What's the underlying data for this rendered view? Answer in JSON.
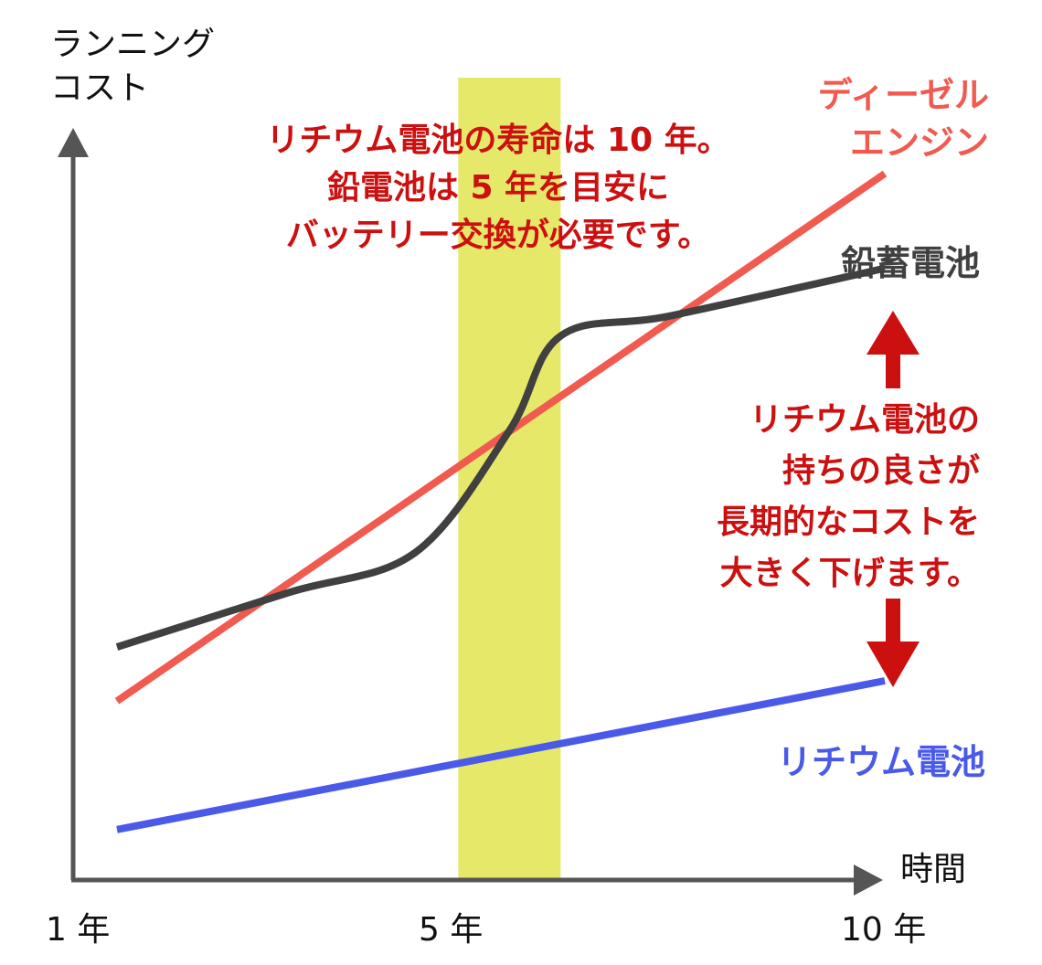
{
  "chart_data": {
    "type": "line",
    "title": "",
    "ylabel": [
      "ランニング",
      "コスト"
    ],
    "xlabel": "時間",
    "x_ticks": [
      "1 年",
      "5 年",
      "10 年"
    ],
    "highlight_band": {
      "from_year": 5,
      "to_year": 6.2,
      "color": "#e6e86a"
    },
    "series": [
      {
        "name": [
          "ディーゼル",
          "エンジン"
        ],
        "color": "#f05a4f",
        "points": [
          [
            1,
            0.22
          ],
          [
            10,
            1.0
          ]
        ]
      },
      {
        "name": [
          "鉛蓄電池"
        ],
        "color": "#404040",
        "points": [
          [
            1,
            0.3
          ],
          [
            3,
            0.38
          ],
          [
            4.5,
            0.44
          ],
          [
            5.6,
            0.62
          ],
          [
            6.2,
            0.76
          ],
          [
            7.5,
            0.79
          ],
          [
            10,
            0.86
          ]
        ]
      },
      {
        "name": [
          "リチウム電池"
        ],
        "color": "#4a5ae8",
        "points": [
          [
            1,
            0.03
          ],
          [
            10,
            0.25
          ]
        ]
      }
    ],
    "annotations": {
      "top": [
        "リチウム電池の寿命は 10 年。",
        "鉛電池は 5 年を目安に",
        "バッテリー交換が必要です。"
      ],
      "right": [
        "リチウム電池の",
        "持ちの良さが",
        "長期的なコストを",
        "大きく下げます。"
      ],
      "annotation_color": "#cc1010"
    }
  }
}
